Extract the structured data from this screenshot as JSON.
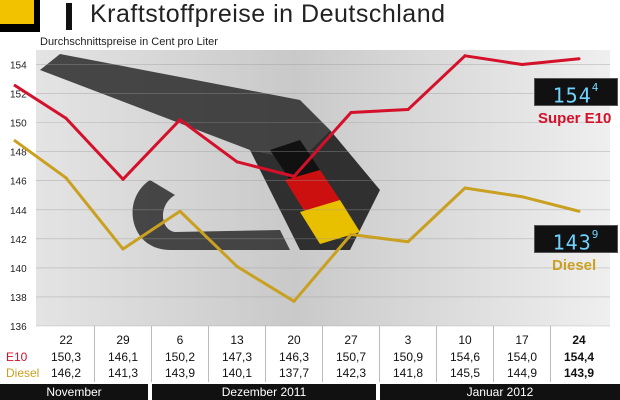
{
  "header": {
    "title": "Kraftstoffpreise in Deutschland",
    "subtitle": "Durchschnittspreise in Cent pro Liter"
  },
  "colors": {
    "e10": "#d4102a",
    "diesel": "#c9a020",
    "background": "#ffffff"
  },
  "chart_data": {
    "type": "line",
    "title": "Kraftstoffpreise in Deutschland",
    "subtitle": "Durchschnittspreise in Cent pro Liter",
    "ylim": [
      136,
      155
    ],
    "yticks": [
      136,
      138,
      140,
      142,
      144,
      146,
      148,
      150,
      152,
      154
    ],
    "x_labels": [
      "22",
      "29",
      "6",
      "13",
      "20",
      "27",
      "3",
      "10",
      "17",
      "24"
    ],
    "months": [
      "November",
      "Dezember 2011",
      "Januar 2012"
    ],
    "series": [
      {
        "name": "Super E10",
        "row_label": "E10",
        "color": "#d4102a",
        "values": [
          150.3,
          146.1,
          150.2,
          147.3,
          146.3,
          150.7,
          150.9,
          154.6,
          154.0,
          154.4
        ],
        "labels": [
          "150,3",
          "146,1",
          "150,2",
          "147,3",
          "146,3",
          "150,7",
          "150,9",
          "154,6",
          "154,0",
          "154,4"
        ]
      },
      {
        "name": "Diesel",
        "row_label": "Diesel",
        "color": "#c9a020",
        "values": [
          146.2,
          141.3,
          143.9,
          140.1,
          137.7,
          142.3,
          141.8,
          145.5,
          144.9,
          143.9
        ],
        "labels": [
          "146,2",
          "141,3",
          "143,9",
          "140,1",
          "137,7",
          "142,3",
          "141,8",
          "145,5",
          "144,9",
          "143,9"
        ]
      }
    ],
    "badges": {
      "e10": {
        "main": "154",
        "sup": "4"
      },
      "diesel": {
        "main": "143",
        "sup": "9"
      }
    }
  }
}
